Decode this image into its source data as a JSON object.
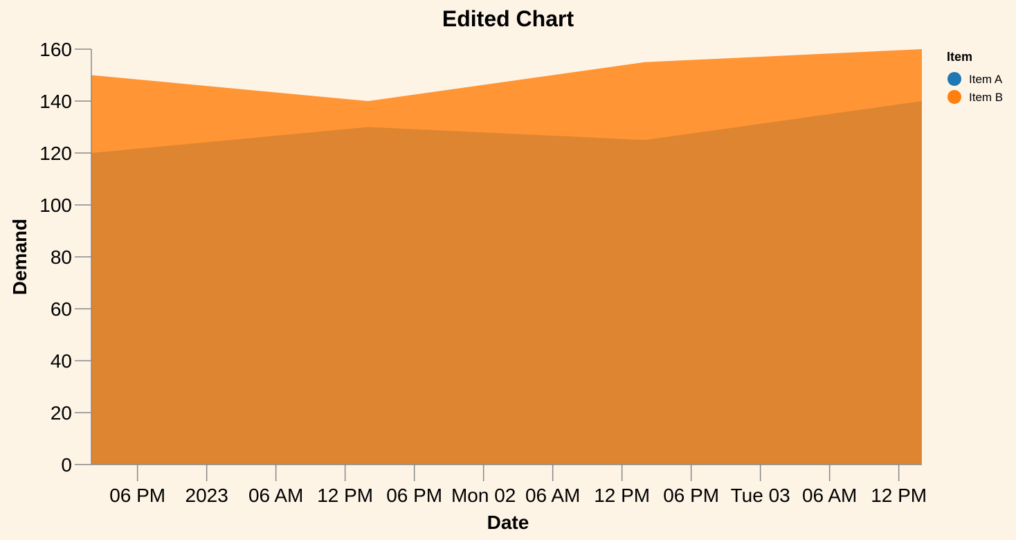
{
  "chart_data": {
    "type": "area",
    "title": "Edited Chart",
    "xlabel": "Date",
    "ylabel": "Demand",
    "ylim": [
      0,
      160
    ],
    "y_ticks": [
      0,
      20,
      40,
      60,
      80,
      100,
      120,
      140,
      160
    ],
    "x_tick_labels": [
      "06 PM",
      "2023",
      "06 AM",
      "12 PM",
      "06 PM",
      "Mon 02",
      "06 AM",
      "12 PM",
      "06 PM",
      "Tue 03",
      "06 AM",
      "12 PM"
    ],
    "x": [
      "2023-01-01 14:00",
      "2023-01-02 14:00",
      "2023-01-03 14:00",
      "2023-01-04 14:00"
    ],
    "series": [
      {
        "name": "Item A",
        "values": [
          120,
          130,
          125,
          140
        ],
        "color": "#1f77b4"
      },
      {
        "name": "Item B",
        "values": [
          150,
          140,
          155,
          160
        ],
        "color": "#ff7f0e"
      }
    ],
    "grid": false,
    "legend": {
      "title": "Item",
      "position": "right"
    }
  },
  "colors": {
    "background": "#fdf4e6",
    "axis": "#888888",
    "overlap_fill": "#dd8530",
    "upper_fill": "#ff9535"
  }
}
